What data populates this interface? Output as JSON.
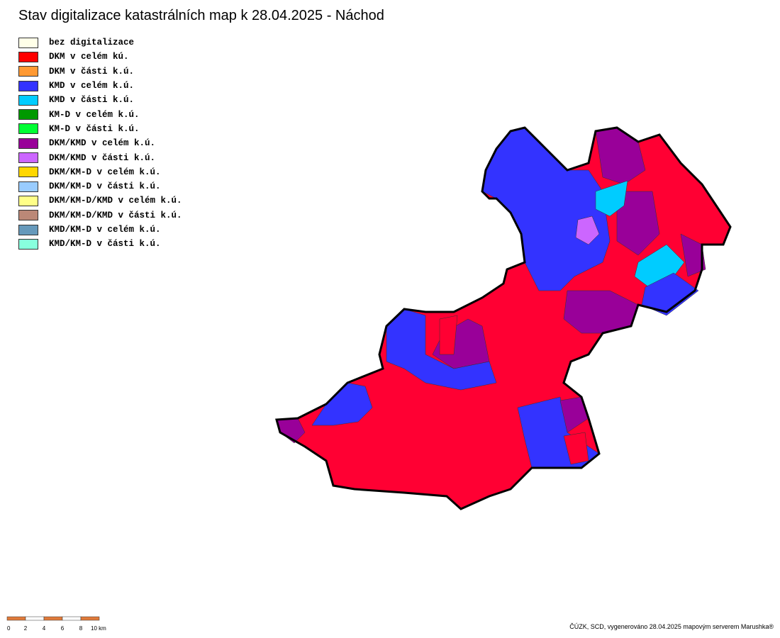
{
  "header": {
    "title": "Stav digitalizace katastrálních map k 28.04.2025 - Náchod"
  },
  "legend": [
    {
      "label": "bez digitalizace",
      "color": "#ffffe8"
    },
    {
      "label": "DKM v celém kú.",
      "color": "#ff0000"
    },
    {
      "label": "DKM v části k.ú.",
      "color": "#ff9933"
    },
    {
      "label": "KMD v celém k.ú.",
      "color": "#3333ff"
    },
    {
      "label": "KMD v části k.ú.",
      "color": "#00ccff"
    },
    {
      "label": "KM-D v celém k.ú.",
      "color": "#009900"
    },
    {
      "label": "KM-D v části k.ú.",
      "color": "#00ff33"
    },
    {
      "label": "DKM/KMD v celém k.ú.",
      "color": "#990099"
    },
    {
      "label": "DKM/KMD v části k.ú.",
      "color": "#cc66ff"
    },
    {
      "label": "DKM/KM-D v celém k.ú.",
      "color": "#ffd700"
    },
    {
      "label": "DKM/KM-D v části k.ú.",
      "color": "#99ccff"
    },
    {
      "label": "DKM/KM-D/KMD v celém k.ú.",
      "color": "#ffff88"
    },
    {
      "label": "DKM/KM-D/KMD v části k.ú.",
      "color": "#bb8877"
    },
    {
      "label": "KMD/KM-D v celém k.ú.",
      "color": "#6699bb"
    },
    {
      "label": "KMD/KM-D v části k.ú.",
      "color": "#88ffdd"
    }
  ],
  "scale_bar": {
    "labels": [
      "0",
      "2",
      "4",
      "6",
      "8",
      "10 km"
    ]
  },
  "footer": {
    "credit": "ČÚZK, SCD, vygenerováno 28.04.2025 mapovým serverem Marushka®"
  }
}
